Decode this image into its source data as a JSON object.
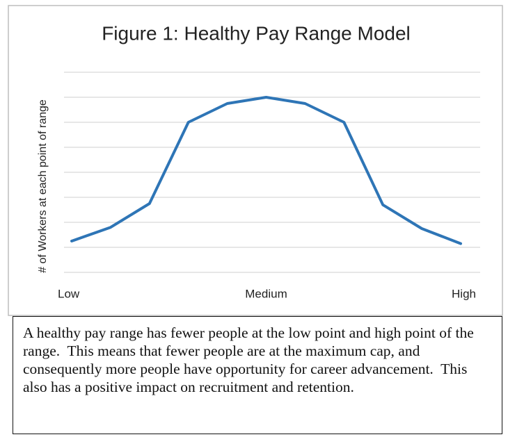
{
  "chart_data": {
    "type": "line",
    "title": "Figure 1: Healthy Pay Range Model",
    "ylabel": "# of Workers at each point of range",
    "categories": [
      "Low",
      null,
      null,
      null,
      null,
      "Medium",
      null,
      null,
      null,
      null,
      "High"
    ],
    "series": [
      {
        "color": "#2e75b6",
        "values": [
          1.25,
          1.8,
          2.75,
          6,
          6.75,
          7,
          6.75,
          6,
          2.7,
          1.75,
          1.15
        ]
      }
    ],
    "ylim": [
      0,
      8
    ],
    "yticks": [
      0,
      1,
      2,
      3,
      4,
      5,
      6,
      7,
      8
    ],
    "grid": true
  },
  "caption": "A healthy pay range has fewer people at the low point and high point of the range.  This means that fewer people are at the maximum cap, and consequently more people have opportunity for career advancement.  This also has a positive impact on recruitment and retention."
}
